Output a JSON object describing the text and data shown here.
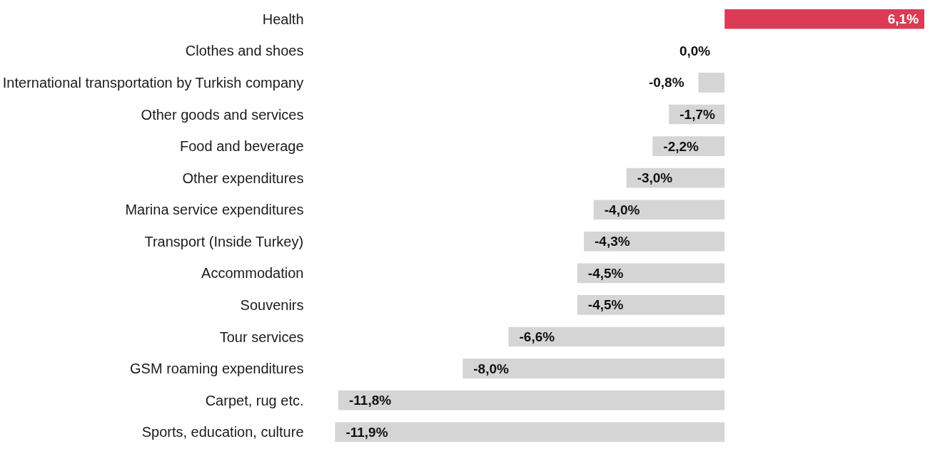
{
  "chart_data": {
    "type": "bar",
    "orientation": "horizontal",
    "categories": [
      "Health",
      "Clothes and shoes",
      "International transportation by Turkish company",
      "Other goods and services",
      "Food and beverage",
      "Other expenditures",
      "Marina service expenditures",
      "Transport (Inside Turkey)",
      "Accommodation",
      "Souvenirs",
      "Tour services",
      "GSM roaming expenditures",
      "Carpet, rug etc.",
      "Sports, education, culture"
    ],
    "values": [
      6.1,
      0.0,
      -0.8,
      -1.7,
      -2.2,
      -3.0,
      -4.0,
      -4.3,
      -4.5,
      -4.5,
      -6.6,
      -8.0,
      -11.8,
      -11.9
    ],
    "colors": [
      "#dc3a55",
      "#d4d5d4",
      "#d4d5d4",
      "#d4d5d4",
      "#d4d5d4",
      "#d4d5d4",
      "#d4d5d4",
      "#d4d5d4",
      "#d4d5d4",
      "#d4d5d4",
      "#d4d5d4",
      "#d4d5d4",
      "#d4d5d4",
      "#d4d5d4"
    ],
    "value_labels": [
      "6,1%",
      "0,0%",
      "-0,8%",
      "-1,7%",
      "-2,2%",
      "-3,0%",
      "-4,0%",
      "-4,3%",
      "-4,5%",
      "-4,5%",
      "-6,6%",
      "-8,0%",
      "-11,8%",
      "-11,9%"
    ],
    "grid": false
  }
}
